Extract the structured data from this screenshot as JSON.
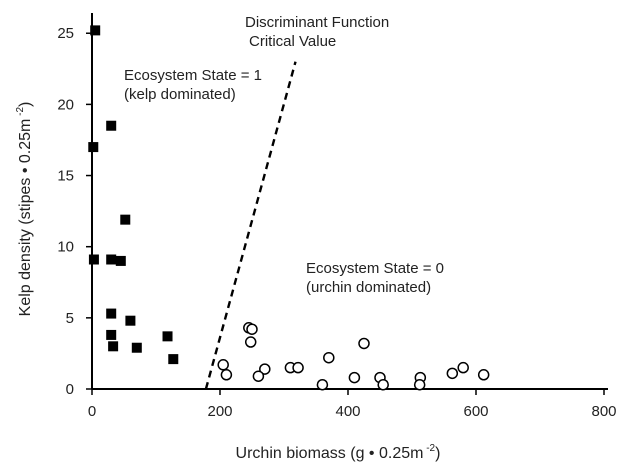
{
  "chart_data": {
    "type": "scatter",
    "title": "",
    "xlabel": {
      "text": "Urchin biomass (g • 0.25m",
      "sup": " -2",
      "suffix": ")"
    },
    "ylabel": {
      "text": "Kelp density (stipes • 0.25m",
      "sup": " -2",
      "suffix": ")"
    },
    "xlim": [
      0,
      800
    ],
    "ylim": [
      0,
      26
    ],
    "xticks": [
      0,
      200,
      400,
      600,
      800
    ],
    "yticks": [
      0,
      5,
      10,
      15,
      20,
      25
    ],
    "grid": false,
    "series": [
      {
        "marker": "filled-square",
        "color": "#000000",
        "points": [
          [
            5,
            25.2
          ],
          [
            2,
            17
          ],
          [
            30,
            18.5
          ],
          [
            3,
            9.1
          ],
          [
            30,
            9.1
          ],
          [
            45,
            9
          ],
          [
            52,
            11.9
          ],
          [
            30,
            5.3
          ],
          [
            60,
            4.8
          ],
          [
            30,
            3.8
          ],
          [
            33,
            3
          ],
          [
            70,
            2.9
          ],
          [
            118,
            3.7
          ],
          [
            127,
            2.1
          ]
        ]
      },
      {
        "marker": "open-circle",
        "color": "#000000",
        "points": [
          [
            245,
            4.3
          ],
          [
            250,
            4.2
          ],
          [
            248,
            3.3
          ],
          [
            425,
            3.2
          ],
          [
            370,
            2.2
          ],
          [
            205,
            1.7
          ],
          [
            210,
            1
          ],
          [
            270,
            1.4
          ],
          [
            260,
            0.9
          ],
          [
            310,
            1.5
          ],
          [
            322,
            1.5
          ],
          [
            360,
            0.3
          ],
          [
            410,
            0.8
          ],
          [
            450,
            0.8
          ],
          [
            455,
            0.3
          ],
          [
            513,
            0.8
          ],
          [
            512,
            0.3
          ],
          [
            563,
            1.1
          ],
          [
            580,
            1.5
          ],
          [
            612,
            1
          ]
        ]
      }
    ],
    "reference_line": {
      "style": "dashed",
      "from": [
        178,
        0
      ],
      "to": [
        318,
        23
      ]
    },
    "annotations": [
      {
        "lines": [
          "Discriminant Function",
          "Critical Value"
        ]
      },
      {
        "lines": [
          "Ecosystem State = 1",
          "(kelp dominated)"
        ]
      },
      {
        "lines": [
          "Ecosystem State = 0",
          "(urchin dominated)"
        ]
      }
    ]
  }
}
